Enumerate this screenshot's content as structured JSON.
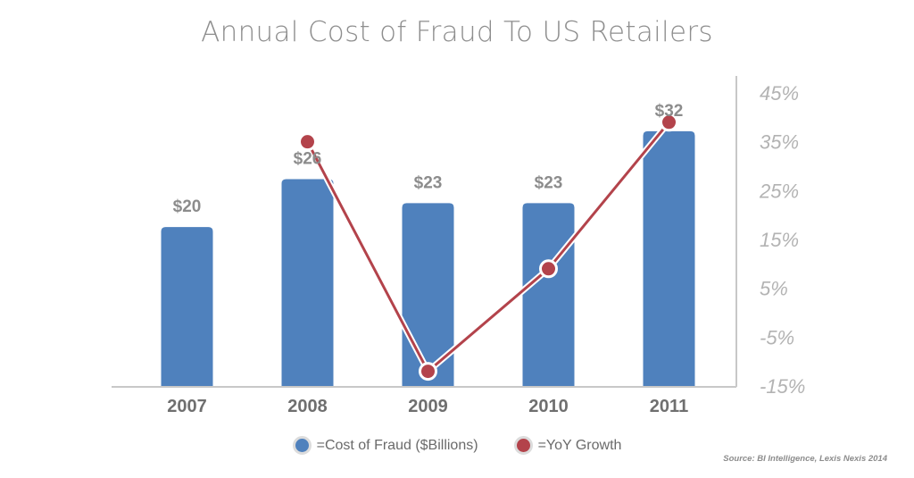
{
  "title": "Annual Cost of Fraud To US Retailers",
  "source": "Source: BI Intelligence, Lexis Nexis 2014",
  "legend": {
    "bars_label": "=Cost of Fraud ($Billions)",
    "line_label": "=YoY Growth"
  },
  "colors": {
    "bar": "#4f81bd",
    "line": "#b3434b",
    "title": "#8e8e8e",
    "axis": "#c8c8c8"
  },
  "chart_data": {
    "type": "bar",
    "categories": [
      "2007",
      "2008",
      "2009",
      "2010",
      "2011"
    ],
    "series": [
      {
        "name": "=Cost of Fraud ($Billions)",
        "type": "bar",
        "values": [
          20,
          26,
          23,
          23,
          32
        ],
        "data_labels": [
          "$20",
          "$26",
          "$23",
          "$23",
          "$32"
        ]
      },
      {
        "name": "=YoY Growth",
        "type": "line",
        "axis": "right",
        "values": [
          null,
          35,
          -12,
          9,
          39
        ]
      }
    ],
    "ylim": [
      0,
      35
    ],
    "y2lim": [
      -15,
      45
    ],
    "y2_ticks": [
      "45%",
      "35%",
      "25%",
      "15%",
      "5%",
      "-5%",
      "-15%"
    ],
    "grid": false,
    "legend_position": "bottom"
  }
}
